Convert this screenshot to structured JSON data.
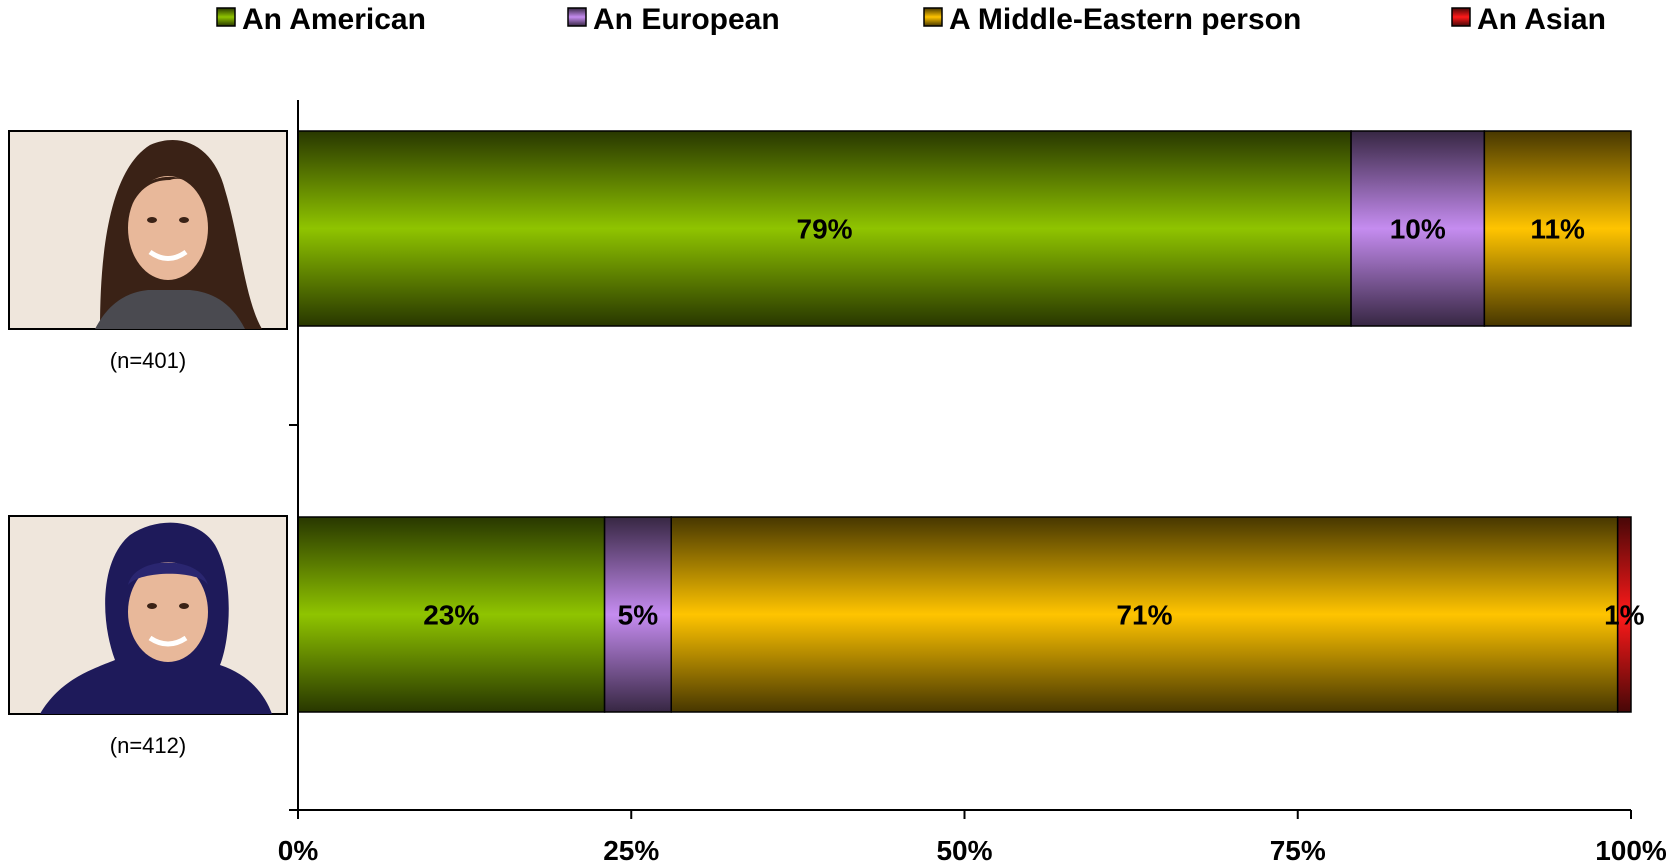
{
  "chart_data": {
    "type": "bar",
    "orientation": "horizontal",
    "stacked": true,
    "categories": [
      "(n=401)",
      "(n=412)"
    ],
    "series": [
      {
        "name": "An American",
        "values": [
          79,
          23
        ],
        "color": "#8fc400"
      },
      {
        "name": "An European",
        "values": [
          10,
          5
        ],
        "color": "#c58cf0"
      },
      {
        "name": "A Middle-Eastern person",
        "values": [
          11,
          71
        ],
        "color": "#ffc400"
      },
      {
        "name": "An Asian",
        "values": [
          0,
          1
        ],
        "color": "#ff1a1a"
      }
    ],
    "xlim": [
      0,
      100
    ],
    "xticks": [
      "0%",
      "25%",
      "50%",
      "75%",
      "100%"
    ],
    "grid": false,
    "legend_position": "top",
    "row_images": [
      "woman-long-hair-photo",
      "woman-hijab-photo"
    ]
  }
}
